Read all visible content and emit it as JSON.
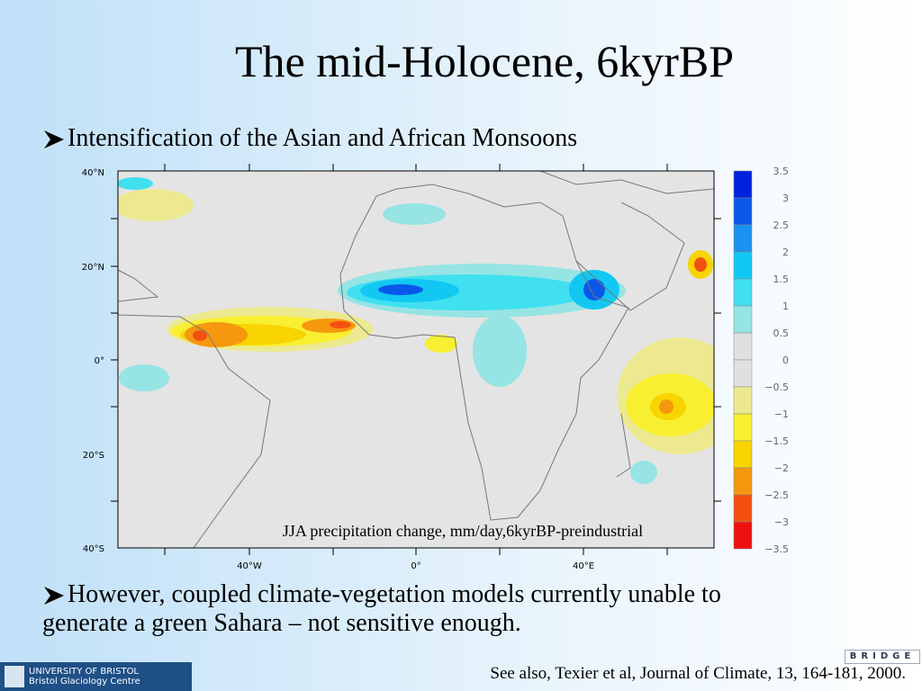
{
  "slide": {
    "title": "The mid-Holocene, 6kyrBP",
    "bullets": [
      "Intensification of the Asian and African Monsoons",
      "However, coupled climate-vegetation models currently unable to generate a green Sahara – not sensitive enough."
    ],
    "figure": {
      "caption": "JJA precipitation change, mm/day,6kyrBP-preindustrial",
      "lat_labels": [
        "40°N",
        "20°N",
        "0°",
        "20°S",
        "40°S"
      ],
      "lon_labels": [
        "40°W",
        "0°",
        "40°E"
      ],
      "colorbar": {
        "labels": [
          "3.5",
          "3",
          "2.5",
          "2",
          "1.5",
          "1",
          "0.5",
          "0",
          "−0.5",
          "−1",
          "−1.5",
          "−2",
          "−2.5",
          "−3",
          "−3.5"
        ],
        "colors": [
          "#0022dd",
          "#0a58ea",
          "#1a92f0",
          "#12c8f2",
          "#40e0f0",
          "#96e4e4",
          "#e0e0e0",
          "#e0e0e0",
          "#ece990",
          "#f8ef30",
          "#f8d400",
          "#f5980e",
          "#f25010",
          "#ee1010"
        ]
      }
    },
    "footer": {
      "logo_lines": [
        "UNIVERSITY OF BRISTOL",
        "Bristol Glaciology Centre"
      ],
      "bridge": "BRIDGE",
      "citation": "See also, Texier et al, Journal of Climate, 13, 164-181, 2000."
    }
  }
}
